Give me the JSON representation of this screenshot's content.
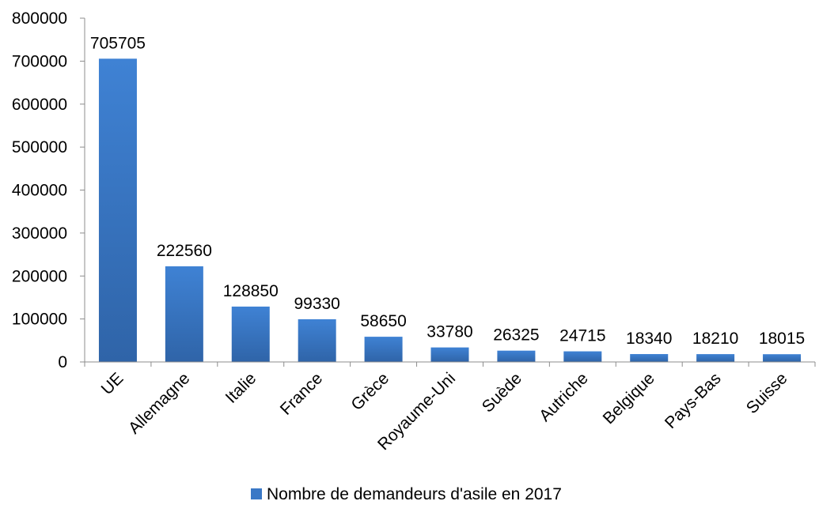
{
  "chart_data": {
    "type": "bar",
    "categories": [
      "UE",
      "Allemagne",
      "Italie",
      "France",
      "Grèce",
      "Royaume-Uni",
      "Suède",
      "Autriche",
      "Belgique",
      "Pays-Bas",
      "Suisse"
    ],
    "series": [
      {
        "name": "Nombre de demandeurs d'asile en 2017",
        "values": [
          705705,
          222560,
          128850,
          99330,
          58650,
          33780,
          26325,
          24715,
          18340,
          18210,
          18015
        ],
        "color": "#3a78c6"
      }
    ],
    "data_labels": [
      "705705",
      "222560",
      "128850",
      "99330",
      "58650",
      "33780",
      "26325",
      "24715",
      "18340",
      "18210",
      "18015"
    ],
    "yticks": [
      "0",
      "100000",
      "200000",
      "300000",
      "400000",
      "500000",
      "600000",
      "700000",
      "800000"
    ],
    "ylim": [
      0,
      800000
    ],
    "grid": false,
    "legend_position": "bottom",
    "title": "",
    "xlabel": "",
    "ylabel": ""
  }
}
